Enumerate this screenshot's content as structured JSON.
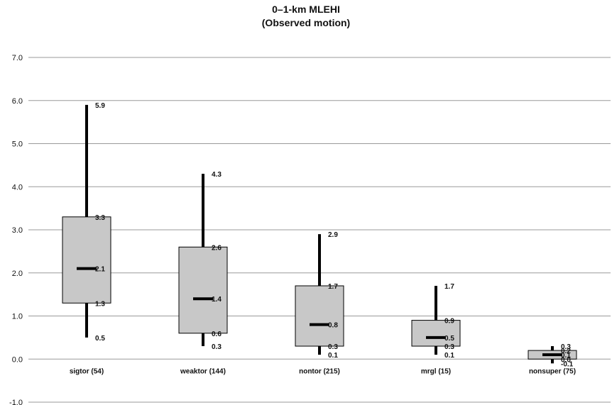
{
  "chart_data": {
    "type": "box",
    "title": "0–1-km MLEHI",
    "subtitle": "(Observed motion)",
    "ylim": [
      -1.0,
      7.0
    ],
    "yticks": [
      "-1.0",
      "0.0",
      "1.0",
      "2.0",
      "3.0",
      "4.0",
      "5.0",
      "6.0",
      "7.0"
    ],
    "grid": true,
    "categories": [
      "sigtor (54)",
      "weaktor (144)",
      "nontor (215)",
      "mrgl (15)",
      "nonsuper (75)"
    ],
    "boxes": [
      {
        "whisker_low": 0.5,
        "q1": 1.3,
        "median": 2.1,
        "q3": 3.3,
        "whisker_high": 5.9,
        "labels": {
          "whisker_low": "0.5",
          "q1": "1.3",
          "median": "2.1",
          "q3": "3.3",
          "whisker_high": "5.9"
        }
      },
      {
        "whisker_low": 0.3,
        "q1": 0.6,
        "median": 1.4,
        "q3": 2.6,
        "whisker_high": 4.3,
        "labels": {
          "whisker_low": "0.3",
          "q1": "0.6",
          "median": "1.4",
          "q3": "2.6",
          "whisker_high": "4.3"
        }
      },
      {
        "whisker_low": 0.1,
        "q1": 0.3,
        "median": 0.8,
        "q3": 1.7,
        "whisker_high": 2.9,
        "labels": {
          "whisker_low": "0.1",
          "q1": "0.3",
          "median": "0.8",
          "q3": "1.7",
          "whisker_high": "2.9"
        }
      },
      {
        "whisker_low": 0.1,
        "q1": 0.3,
        "median": 0.5,
        "q3": 0.9,
        "whisker_high": 1.7,
        "labels": {
          "whisker_low": "0.1",
          "q1": "0.3",
          "median": "0.5",
          "q3": "0.9",
          "whisker_high": "1.7"
        }
      },
      {
        "whisker_low": -0.1,
        "q1": 0.0,
        "median": 0.1,
        "q3": 0.2,
        "whisker_high": 0.3,
        "labels": {
          "whisker_low": "-0.1",
          "q1": "0.0",
          "median": "0.1",
          "q3": "0.2",
          "whisker_high": "0.3"
        }
      }
    ],
    "colors": {
      "box_fill": "#c8c8c8",
      "whisker": "#000000",
      "grid": "#9a9a9a"
    }
  }
}
